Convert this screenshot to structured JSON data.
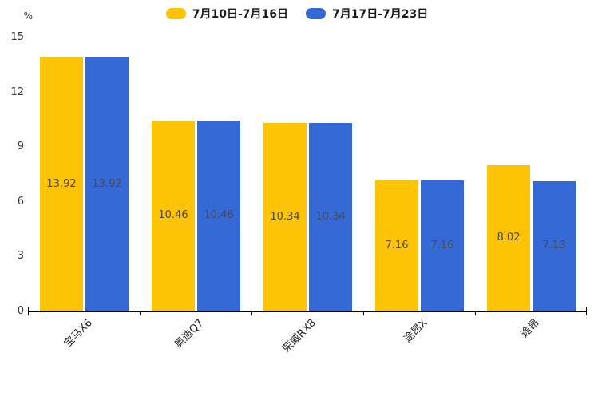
{
  "chart_data": {
    "type": "bar",
    "title": "",
    "categories": [
      "宝马X6",
      "奥迪Q7",
      "荣威RX8",
      "途昂X",
      "途昂"
    ],
    "series": [
      {
        "name": "7月10日-7月16日",
        "color": "#FCC307",
        "values": [
          13.92,
          10.46,
          10.34,
          7.16,
          8.02
        ]
      },
      {
        "name": "7月17日-7月23日",
        "color": "#3569D6",
        "values": [
          13.92,
          10.46,
          10.34,
          7.16,
          7.13
        ]
      }
    ],
    "xlabel": "",
    "ylabel": "%",
    "ylim": [
      0,
      15
    ],
    "yticks": [
      0,
      3,
      6,
      9,
      12,
      15
    ],
    "grid": false,
    "legend_position": "top-center",
    "value_labels": "inside-center",
    "background_color": "#ffffff",
    "axis_color": "#000000",
    "tick_label_color": "#333333",
    "value_label_color": "#4a4a4a"
  }
}
